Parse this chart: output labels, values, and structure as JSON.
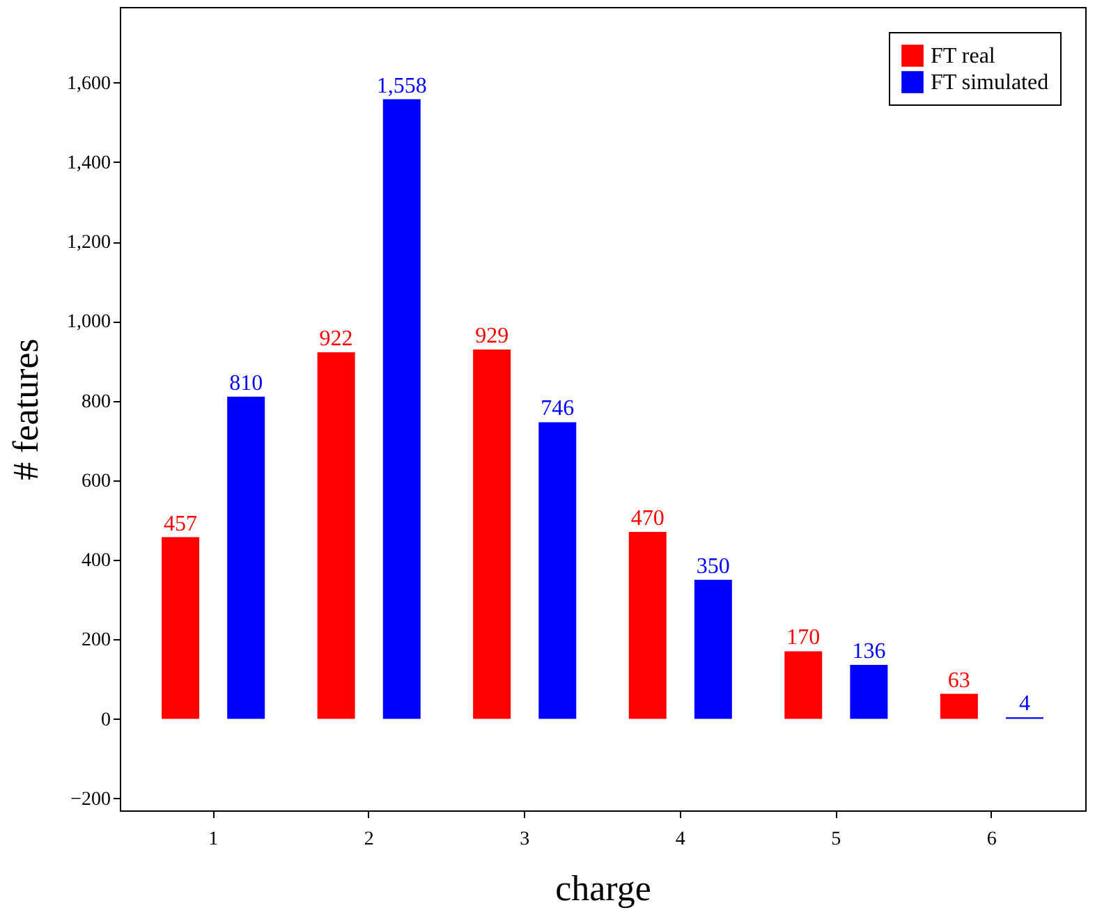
{
  "chart_data": {
    "type": "bar",
    "xlabel": "charge",
    "ylabel": "# features",
    "categories": [
      "1",
      "2",
      "3",
      "4",
      "5",
      "6"
    ],
    "series": [
      {
        "name": "FT real",
        "color": "#ff0000",
        "values": [
          457,
          922,
          929,
          470,
          170,
          63
        ],
        "value_labels": [
          "457",
          "922",
          "929",
          "470",
          "170",
          "63"
        ]
      },
      {
        "name": "FT simulated",
        "color": "#0000ff",
        "values": [
          810,
          1558,
          746,
          350,
          136,
          4
        ],
        "value_labels": [
          "810",
          "1,558",
          "746",
          "350",
          "136",
          "4"
        ]
      }
    ],
    "ylim": [
      -230,
      1790
    ],
    "yticks": [
      {
        "value": -200,
        "label": "−200"
      },
      0,
      200,
      400,
      600,
      800,
      {
        "value": 1000,
        "label": "1,000"
      },
      {
        "value": 1200,
        "label": "1,200"
      },
      {
        "value": 1400,
        "label": "1,400"
      },
      {
        "value": 1600,
        "label": "1,600"
      }
    ],
    "legend": "top right",
    "grid": false
  }
}
